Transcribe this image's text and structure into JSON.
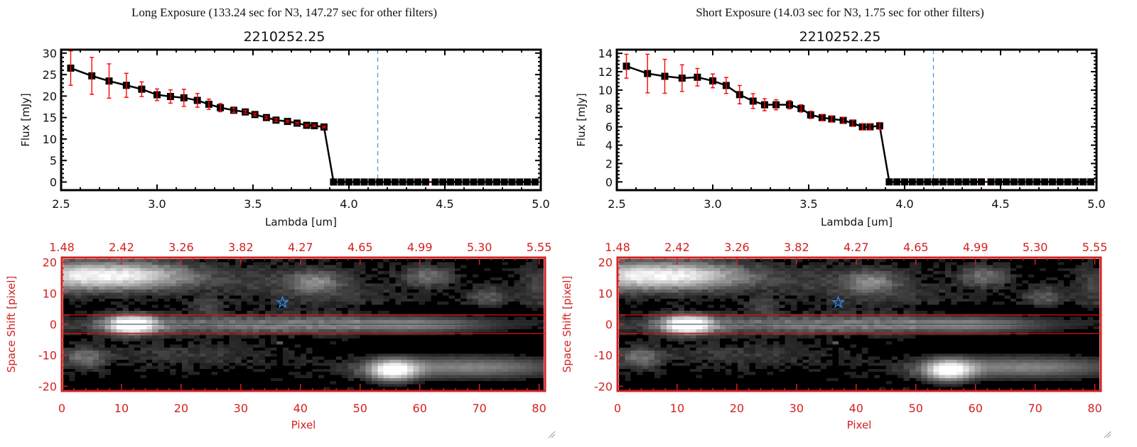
{
  "panels": [
    {
      "title": "Long Exposure (133.24 sec for N3, 147.27 sec for other filters)",
      "object_id": "2210252.25"
    },
    {
      "title": "Short Exposure (14.03 sec for N3, 1.75 sec for other filters)",
      "object_id": "2210252.25"
    }
  ],
  "colors": {
    "data_line": "#000000",
    "error_bar": "#ff0000",
    "marker_line": "#4a9ae0",
    "image_axes": "#d42020",
    "star": "#2f8fff"
  },
  "chart_data": [
    {
      "type": "scatter",
      "title": "2210252.25",
      "xlabel": "Lambda [um]",
      "ylabel": "Flux [mJy]",
      "xlim": [
        2.5,
        5.0
      ],
      "ylim": [
        -1.9,
        30.8
      ],
      "xticks": [
        "2.5",
        "3.0",
        "3.5",
        "4.0",
        "4.5",
        "5.0"
      ],
      "yticks": [
        "0",
        "5",
        "10",
        "15",
        "20",
        "25",
        "30"
      ],
      "ytick_step": 5,
      "vline_x": 4.15,
      "x": [
        2.55,
        2.66,
        2.75,
        2.84,
        2.92,
        3.0,
        3.07,
        3.14,
        3.21,
        3.27,
        3.33,
        3.4,
        3.46,
        3.51,
        3.57,
        3.62,
        3.68,
        3.73,
        3.78,
        3.82,
        3.87
      ],
      "y": [
        26.5,
        24.7,
        23.5,
        22.5,
        21.6,
        20.3,
        19.9,
        19.6,
        19.0,
        18.1,
        17.3,
        16.7,
        16.3,
        15.7,
        15.0,
        14.4,
        14.1,
        13.7,
        13.2,
        13.1,
        12.8
      ],
      "yerr": [
        4.0,
        4.3,
        4.0,
        2.8,
        1.7,
        1.35,
        1.55,
        2.0,
        1.6,
        1.2,
        0.95,
        0.5,
        0.3,
        0.3,
        0.3,
        0.3,
        0.2,
        0.2,
        0.2,
        0.2,
        0.2
      ],
      "zero_x": [
        3.92,
        3.96,
        4.0,
        4.04,
        4.08,
        4.12,
        4.16,
        4.2,
        4.24,
        4.28,
        4.32,
        4.36,
        4.4,
        4.45,
        4.49,
        4.53,
        4.57,
        4.61,
        4.65,
        4.69,
        4.73,
        4.77,
        4.81,
        4.85,
        4.89,
        4.93,
        4.97
      ]
    },
    {
      "type": "scatter",
      "title": "2210252.25",
      "xlabel": "Lambda [um]",
      "ylabel": "Flux [mJy]",
      "xlim": [
        2.5,
        5.0
      ],
      "ylim": [
        -0.9,
        14.4
      ],
      "xticks": [
        "2.5",
        "3.0",
        "3.5",
        "4.0",
        "4.5",
        "5.0"
      ],
      "yticks": [
        "0",
        "2",
        "4",
        "6",
        "8",
        "10",
        "12",
        "14"
      ],
      "ytick_step": 2,
      "vline_x": 4.15,
      "x": [
        2.55,
        2.66,
        2.75,
        2.84,
        2.92,
        3.0,
        3.07,
        3.14,
        3.21,
        3.27,
        3.33,
        3.4,
        3.46,
        3.51,
        3.57,
        3.62,
        3.68,
        3.73,
        3.78,
        3.82,
        3.87
      ],
      "y": [
        12.6,
        11.8,
        11.5,
        11.3,
        11.4,
        11.0,
        10.5,
        9.5,
        8.8,
        8.4,
        8.4,
        8.4,
        8.0,
        7.3,
        7.0,
        6.85,
        6.7,
        6.4,
        6.0,
        6.0,
        6.1
      ],
      "yerr": [
        1.3,
        2.1,
        1.85,
        1.45,
        0.95,
        0.75,
        0.87,
        1.0,
        0.8,
        0.65,
        0.55,
        0.45,
        0.4,
        0.4,
        0.35,
        0.33,
        0.33,
        0.35,
        0.35,
        0.35,
        0.37
      ],
      "zero_x": [
        3.92,
        3.96,
        4.0,
        4.04,
        4.08,
        4.12,
        4.16,
        4.2,
        4.24,
        4.28,
        4.32,
        4.36,
        4.4,
        4.45,
        4.49,
        4.53,
        4.57,
        4.61,
        4.65,
        4.69,
        4.73,
        4.77,
        4.81,
        4.85,
        4.89,
        4.93,
        4.97
      ]
    },
    {
      "type": "heatmap",
      "xlabel": "Pixel",
      "ylabel": "Space Shift [pixel]",
      "xlim": [
        0,
        81
      ],
      "ylim": [
        -21.5,
        21.5
      ],
      "xticks": [
        "0",
        "10",
        "20",
        "30",
        "40",
        "50",
        "60",
        "70",
        "80"
      ],
      "top_ticks": [
        "1.48",
        "2.42",
        "3.26",
        "3.82",
        "4.27",
        "4.65",
        "4.99",
        "5.30",
        "5.55"
      ],
      "yticks": [
        "-20",
        "-10",
        "0",
        "10",
        "20"
      ],
      "aperture_y": [
        -3,
        3
      ],
      "star": {
        "x": 37,
        "y": 7
      }
    },
    {
      "type": "heatmap",
      "xlabel": "Pixel",
      "ylabel": "Space Shift [pixel]",
      "xlim": [
        0,
        81
      ],
      "ylim": [
        -21.5,
        21.5
      ],
      "xticks": [
        "0",
        "10",
        "20",
        "30",
        "40",
        "50",
        "60",
        "70",
        "80"
      ],
      "top_ticks": [
        "1.48",
        "2.42",
        "3.26",
        "3.82",
        "4.27",
        "4.65",
        "4.99",
        "5.30",
        "5.55"
      ],
      "yticks": [
        "-20",
        "-10",
        "0",
        "10",
        "20"
      ],
      "aperture_y": [
        -3,
        3
      ],
      "star": {
        "x": 37,
        "y": 7
      }
    }
  ]
}
